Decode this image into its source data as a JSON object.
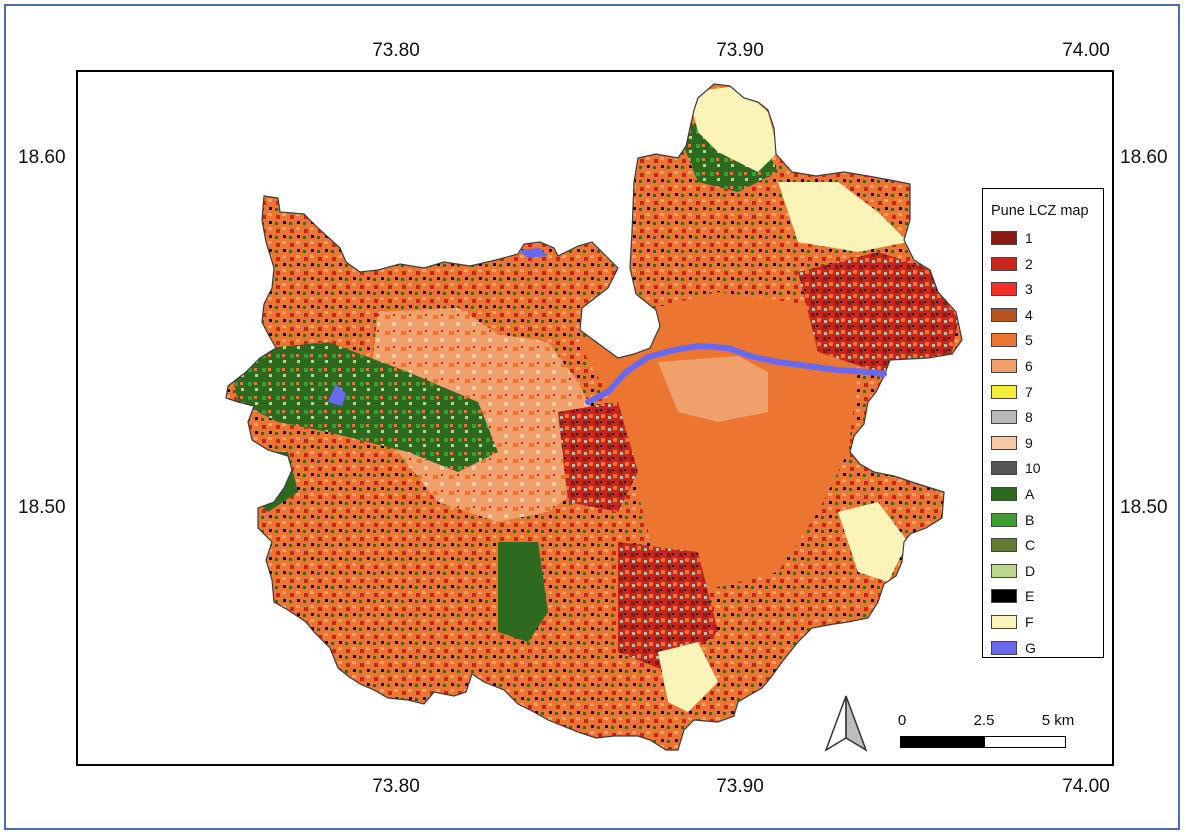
{
  "axes": {
    "top_ticks": [
      "73.80",
      "73.90",
      "74.00"
    ],
    "bottom_ticks": [
      "73.80",
      "73.90",
      "74.00"
    ],
    "left_ticks": [
      "18.60",
      "18.50"
    ],
    "right_ticks": [
      "18.60",
      "18.50"
    ]
  },
  "legend": {
    "title": "Pune LCZ map",
    "items": [
      {
        "label": "1",
        "color": "#8b1a12"
      },
      {
        "label": "2",
        "color": "#c8261c"
      },
      {
        "label": "3",
        "color": "#ee3124"
      },
      {
        "label": "4",
        "color": "#b5541e"
      },
      {
        "label": "5",
        "color": "#ec7631"
      },
      {
        "label": "6",
        "color": "#f0a06a"
      },
      {
        "label": "7",
        "color": "#f7ee3a"
      },
      {
        "label": "8",
        "color": "#b9b9b9"
      },
      {
        "label": "9",
        "color": "#f7c7a6"
      },
      {
        "label": "10",
        "color": "#555555"
      },
      {
        "label": "A",
        "color": "#2d6a1f"
      },
      {
        "label": "B",
        "color": "#3f9d34"
      },
      {
        "label": "C",
        "color": "#627a32"
      },
      {
        "label": "D",
        "color": "#b9d88a"
      },
      {
        "label": "E",
        "color": "#000000"
      },
      {
        "label": "F",
        "color": "#faf4b8"
      },
      {
        "label": "G",
        "color": "#6969ef"
      }
    ]
  },
  "scale_bar": {
    "labels": [
      "0",
      "2.5",
      "5 km"
    ]
  }
}
